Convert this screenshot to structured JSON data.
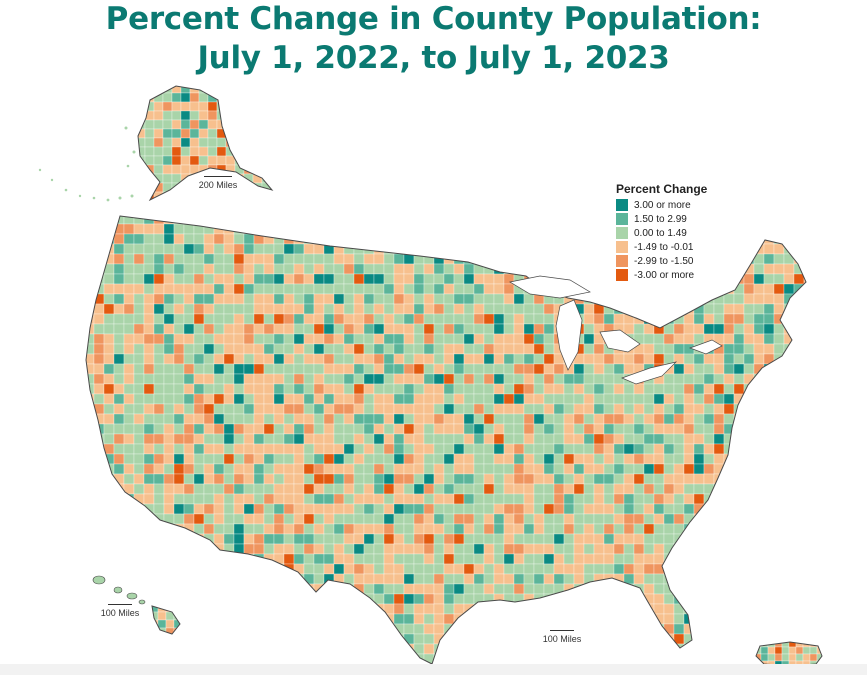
{
  "title": {
    "line1": "Percent Change in County Population:",
    "line2": "July 1, 2022, to July 1, 2023"
  },
  "legend": {
    "title": "Percent Change",
    "items": [
      {
        "label": "3.00 or more",
        "color": "#0a8a83"
      },
      {
        "label": "1.50 to 2.99",
        "color": "#5bb59a"
      },
      {
        "label": "0.00 to 1.49",
        "color": "#a9d4a9"
      },
      {
        "label": "-1.49 to -0.01",
        "color": "#f7c08e"
      },
      {
        "label": "-2.99 to -1.50",
        "color": "#ef955f"
      },
      {
        "label": "-3.00 or more",
        "color": "#e35a10"
      }
    ]
  },
  "scales": {
    "alaska": "200 Miles",
    "hawaii": "100 Miles",
    "puerto_rico": "100 Miles"
  },
  "colors": {
    "title": "#0b7a72",
    "border": "#555555"
  }
}
